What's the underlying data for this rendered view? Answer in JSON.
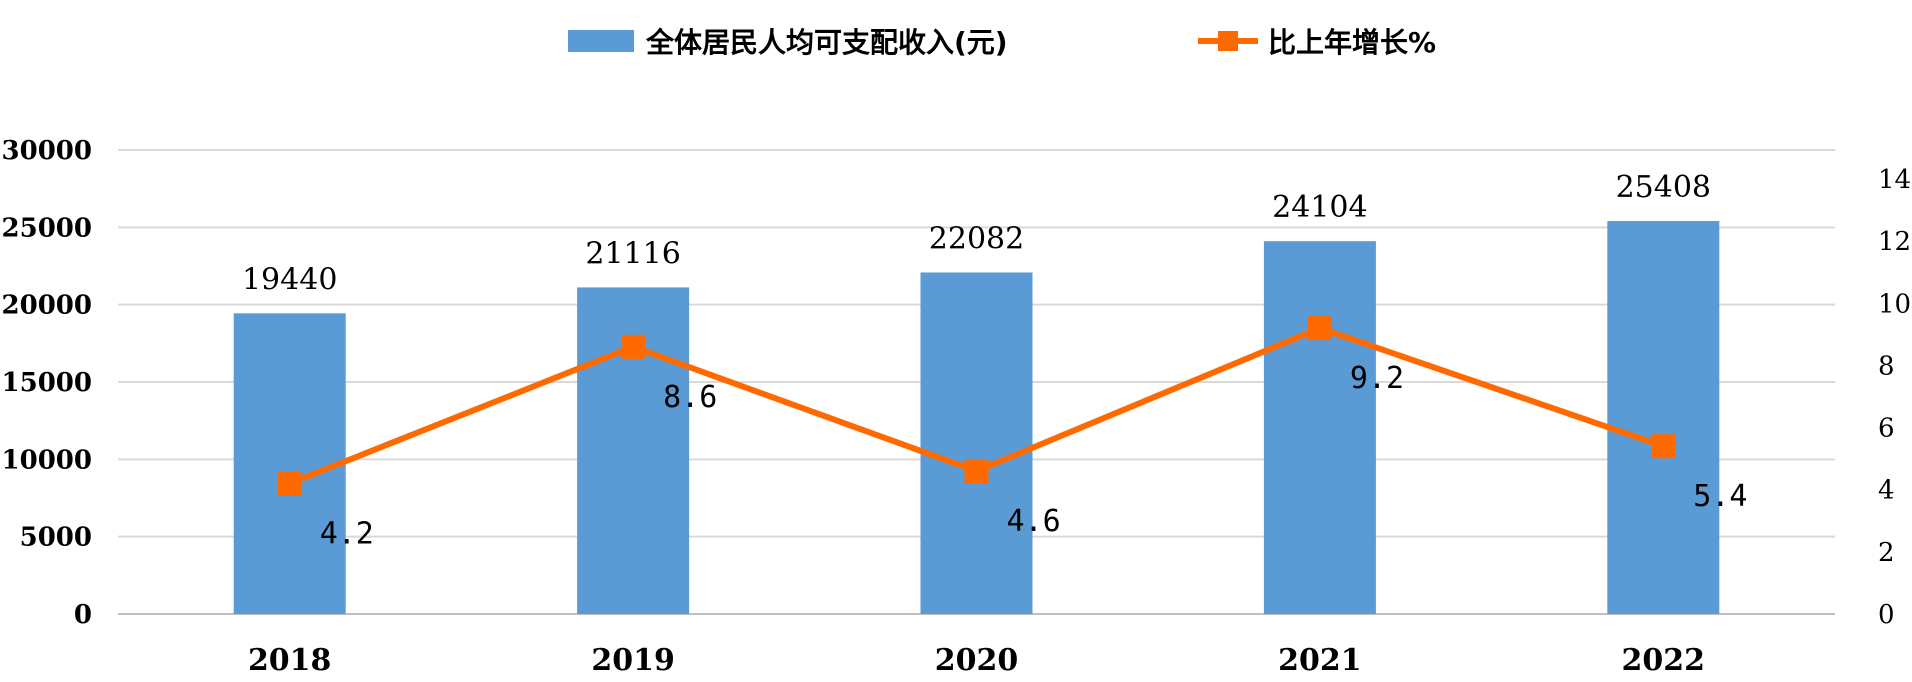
{
  "chart_data": {
    "type": "bar",
    "categories": [
      "2018",
      "2019",
      "2020",
      "2021",
      "2022"
    ],
    "series": [
      {
        "name": "全体居民人均可支配收入(元)",
        "type": "bar",
        "axis": "left",
        "color": "#5B9BD5",
        "values": [
          19440,
          21116,
          22082,
          24104,
          25408
        ],
        "labels": [
          "19440",
          "21116",
          "22082",
          "24104",
          "25408"
        ]
      },
      {
        "name": "比上年增长%",
        "type": "line",
        "axis": "right",
        "color": "#FF6A00",
        "marker": "square",
        "values": [
          4.2,
          8.6,
          4.6,
          9.2,
          5.4
        ],
        "labels": [
          "4.2",
          "8.6",
          "4.6",
          "9.2",
          "5.4"
        ]
      }
    ],
    "y_left": {
      "ylim": [
        0,
        30000
      ],
      "ticks": [
        0,
        5000,
        10000,
        15000,
        20000,
        25000,
        30000
      ]
    },
    "y_right": {
      "ylim": [
        0,
        14
      ],
      "ticks": [
        0,
        2,
        4,
        6,
        8,
        10,
        12,
        14
      ]
    },
    "grid": true,
    "legend_position": "top-center"
  }
}
